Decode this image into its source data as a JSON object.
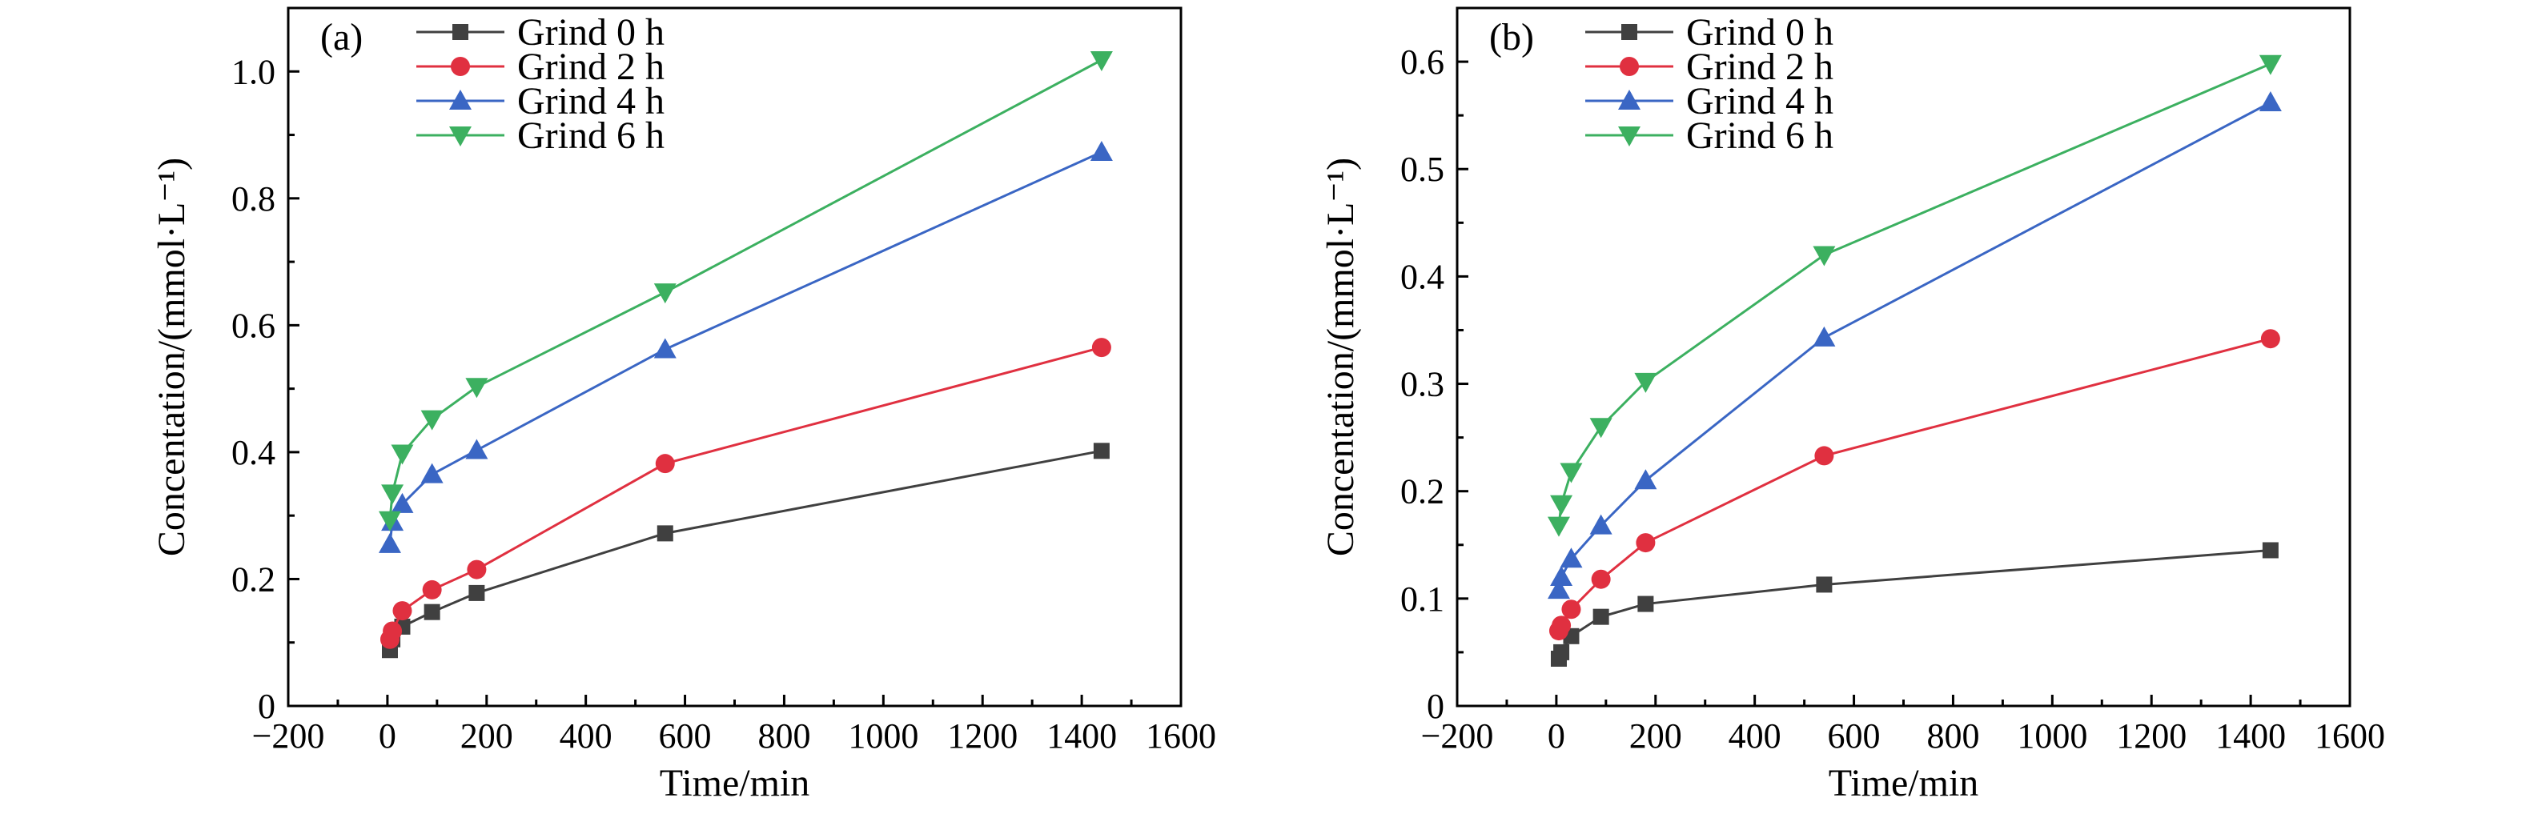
{
  "chart_data": [
    {
      "type": "line",
      "panel_label": "(a)",
      "xlabel": "Time/min",
      "ylabel": "Concentation/(mmol·L⁻¹)",
      "xlim": [
        -200,
        1600
      ],
      "ylim": [
        0,
        1.1
      ],
      "xticks": [
        -200,
        0,
        200,
        400,
        600,
        800,
        1000,
        1200,
        1400,
        1600
      ],
      "xtick_labels": [
        "−200",
        "0",
        "200",
        "400",
        "600",
        "800",
        "1000",
        "1200",
        "1400",
        "1600"
      ],
      "yticks": [
        0,
        0.2,
        0.4,
        0.6,
        0.8,
        1.0
      ],
      "ytick_labels": [
        "0",
        "0.2",
        "0.4",
        "0.6",
        "0.8",
        "1.0"
      ],
      "legend_position": "top-left",
      "grid": false,
      "series": [
        {
          "name": "Grind 0 h",
          "color": "#404040",
          "marker": "square",
          "x": [
            5,
            10,
            30,
            90,
            180,
            560,
            1440
          ],
          "y": [
            0.088,
            0.105,
            0.125,
            0.148,
            0.178,
            0.272,
            0.402
          ]
        },
        {
          "name": "Grind 2 h",
          "color": "#e03040",
          "marker": "circle",
          "x": [
            5,
            10,
            30,
            90,
            180,
            560,
            1440
          ],
          "y": [
            0.105,
            0.118,
            0.15,
            0.183,
            0.215,
            0.382,
            0.565
          ]
        },
        {
          "name": "Grind 4 h",
          "color": "#3a66c4",
          "marker": "triangle-up",
          "x": [
            5,
            10,
            30,
            90,
            180,
            560,
            1440
          ],
          "y": [
            0.255,
            0.29,
            0.318,
            0.365,
            0.403,
            0.562,
            0.873
          ]
        },
        {
          "name": "Grind 6 h",
          "color": "#3cb060",
          "marker": "triangle-down",
          "x": [
            5,
            10,
            30,
            90,
            180,
            560,
            1440
          ],
          "y": [
            0.293,
            0.335,
            0.398,
            0.452,
            0.503,
            0.652,
            1.018
          ]
        }
      ]
    },
    {
      "type": "line",
      "panel_label": "(b)",
      "xlabel": "Time/min",
      "ylabel": "Concentation/(mmol·L⁻¹)",
      "xlim": [
        -200,
        1600
      ],
      "ylim": [
        0,
        0.65
      ],
      "xticks": [
        -200,
        0,
        200,
        400,
        600,
        800,
        1000,
        1200,
        1400,
        1600
      ],
      "xtick_labels": [
        "−200",
        "0",
        "200",
        "400",
        "600",
        "800",
        "1000",
        "1200",
        "1400",
        "1600"
      ],
      "yticks": [
        0,
        0.1,
        0.2,
        0.3,
        0.4,
        0.5,
        0.6
      ],
      "ytick_labels": [
        "0",
        "0.1",
        "0.2",
        "0.3",
        "0.4",
        "0.5",
        "0.6"
      ],
      "legend_position": "top-left",
      "grid": false,
      "series": [
        {
          "name": "Grind 0 h",
          "color": "#404040",
          "marker": "square",
          "x": [
            5,
            10,
            30,
            90,
            180,
            540,
            1440
          ],
          "y": [
            0.044,
            0.05,
            0.065,
            0.083,
            0.095,
            0.113,
            0.145
          ]
        },
        {
          "name": "Grind 2 h",
          "color": "#e03040",
          "marker": "circle",
          "x": [
            5,
            10,
            30,
            90,
            180,
            540,
            1440
          ],
          "y": [
            0.07,
            0.075,
            0.09,
            0.118,
            0.152,
            0.233,
            0.342
          ]
        },
        {
          "name": "Grind 4 h",
          "color": "#3a66c4",
          "marker": "triangle-up",
          "x": [
            5,
            10,
            30,
            90,
            180,
            540,
            1440
          ],
          "y": [
            0.108,
            0.12,
            0.137,
            0.168,
            0.21,
            0.343,
            0.562
          ]
        },
        {
          "name": "Grind 6 h",
          "color": "#3cb060",
          "marker": "triangle-down",
          "x": [
            5,
            10,
            30,
            90,
            180,
            540,
            1440
          ],
          "y": [
            0.168,
            0.188,
            0.218,
            0.26,
            0.302,
            0.42,
            0.598
          ]
        }
      ]
    }
  ]
}
